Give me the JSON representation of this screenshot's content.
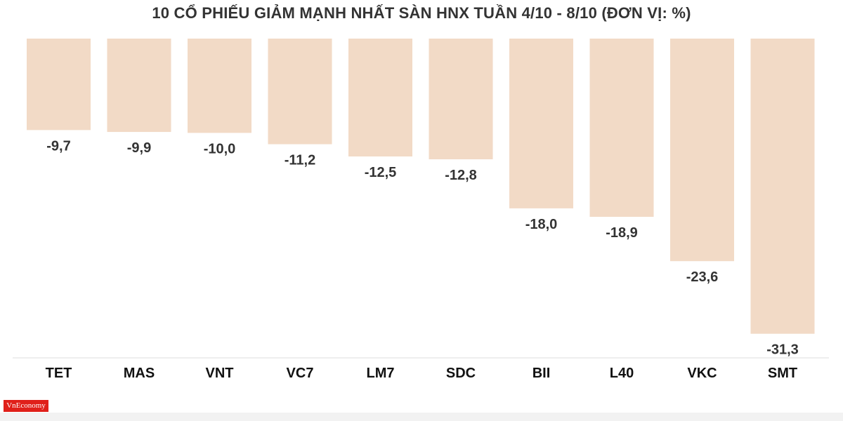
{
  "chart_data": {
    "type": "bar",
    "title": "10 CỔ PHIẾU GIẢM MẠNH NHẤT SÀN HNX TUẦN 4/10 - 8/10 (ĐƠN VỊ: %)",
    "xlabel": "",
    "ylabel": "",
    "categories": [
      "TET",
      "MAS",
      "VNT",
      "VC7",
      "LM7",
      "SDC",
      "BII",
      "L40",
      "VKC",
      "SMT"
    ],
    "values": [
      -9.7,
      -9.9,
      -10.0,
      -11.2,
      -12.5,
      -12.8,
      -18.0,
      -18.9,
      -23.6,
      -31.3
    ],
    "value_labels": [
      "-9,7",
      "-9,9",
      "-10,0",
      "-11,2",
      "-12,5",
      "-12,8",
      "-18,0",
      "-18,9",
      "-23,6",
      "-31,3"
    ],
    "ylim": [
      -33,
      0
    ],
    "grid": false,
    "legend": "none",
    "bar_color": "#f2dac6",
    "label_color": "#333333"
  },
  "branding": {
    "logo_text": "VnEconomy",
    "logo_color": "#e0201a"
  }
}
